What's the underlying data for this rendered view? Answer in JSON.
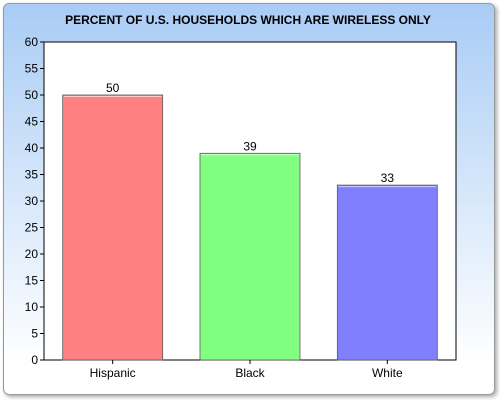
{
  "chart_data": {
    "type": "bar",
    "title": "PERCENT OF U.S. HOUSEHOLDS WHICH ARE WIRELESS ONLY",
    "xlabel": "",
    "ylabel": "",
    "categories": [
      "Hispanic",
      "Black",
      "White"
    ],
    "values": [
      50,
      39,
      33
    ],
    "value_labels": [
      "50",
      "39",
      "33"
    ],
    "bar_colors": [
      "#ff8080",
      "#80ff80",
      "#8080ff"
    ],
    "ylim": [
      0,
      60
    ],
    "yticks": [
      0,
      5,
      10,
      15,
      20,
      25,
      30,
      35,
      40,
      45,
      50,
      55,
      60
    ],
    "ytick_labels": [
      "0",
      "5",
      "10",
      "15",
      "20",
      "25",
      "30",
      "35",
      "40",
      "45",
      "50",
      "55",
      "60"
    ],
    "grid": false,
    "legend": "none"
  }
}
